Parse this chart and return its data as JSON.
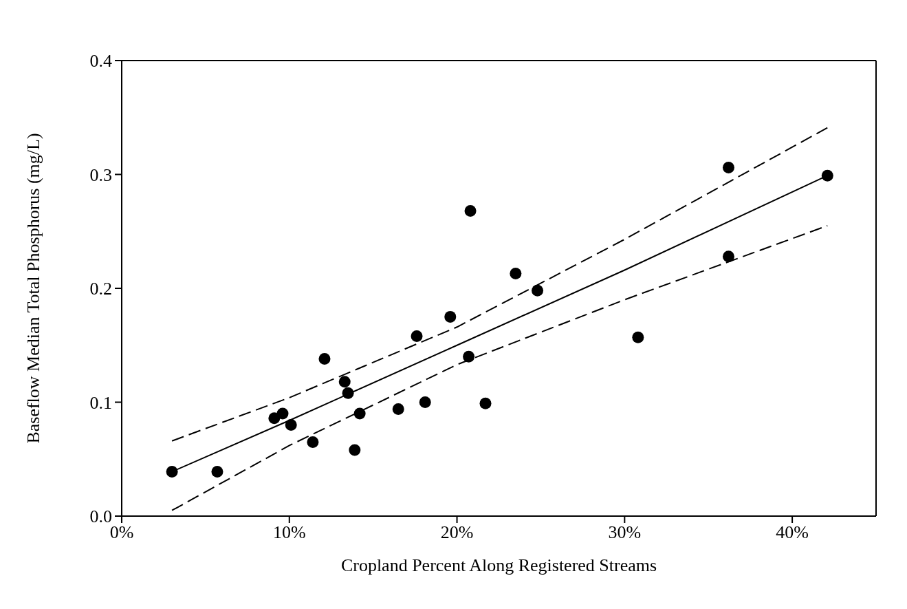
{
  "chart_data": {
    "type": "scatter",
    "xlabel": "Cropland Percent Along Registered Streams",
    "ylabel": "Baseflow Median Total Phosphorus (mg/L)",
    "xlim": [
      0,
      45
    ],
    "xticks": [
      {
        "value": 0,
        "label": "0%"
      },
      {
        "value": 10,
        "label": "10%"
      },
      {
        "value": 20,
        "label": "20%"
      },
      {
        "value": 30,
        "label": "30%"
      },
      {
        "value": 40,
        "label": "40%"
      }
    ],
    "ylim": [
      0,
      0.4
    ],
    "yticks": [
      {
        "value": 0,
        "label": "0.0"
      },
      {
        "value": 0.1,
        "label": "0.1"
      },
      {
        "value": 0.2,
        "label": "0.2"
      },
      {
        "value": 0.3,
        "label": "0.3"
      },
      {
        "value": 0.4,
        "label": "0.4"
      }
    ],
    "grid": false,
    "legend": false,
    "series": [
      {
        "color": "#000000",
        "marker": "circle",
        "x": [
          3.0,
          5.7,
          9.1,
          9.6,
          10.1,
          11.4,
          12.1,
          13.3,
          13.5,
          13.9,
          14.2,
          16.5,
          18.1,
          21.7,
          17.6,
          19.6,
          20.7,
          20.8,
          23.5,
          24.8,
          30.8,
          36.2,
          36.2,
          42.1
        ],
        "values": [
          0.039,
          0.039,
          0.086,
          0.09,
          0.08,
          0.065,
          0.138,
          0.118,
          0.108,
          0.058,
          0.09,
          0.094,
          0.1,
          0.099,
          0.158,
          0.175,
          0.14,
          0.268,
          0.213,
          0.198,
          0.157,
          0.306,
          0.228,
          0.299
        ]
      },
      {
        "type": "line",
        "color": "#000000",
        "marker": "none",
        "line_style": "solid",
        "x": [
          3.0,
          10,
          20,
          30,
          42.1
        ],
        "values": [
          0.039,
          0.084,
          0.15,
          0.216,
          0.299
        ]
      },
      {
        "type": "line",
        "color": "#000000",
        "marker": "none",
        "line_style": "dashed",
        "x": [
          3.0,
          10,
          20,
          30,
          42.1
        ],
        "values": [
          0.066,
          0.104,
          0.166,
          0.243,
          0.341
        ]
      },
      {
        "type": "line",
        "color": "#000000",
        "marker": "none",
        "line_style": "dashed",
        "x": [
          3.0,
          10,
          20,
          30,
          42.1
        ],
        "values": [
          0.005,
          0.062,
          0.133,
          0.19,
          0.255
        ]
      }
    ]
  }
}
